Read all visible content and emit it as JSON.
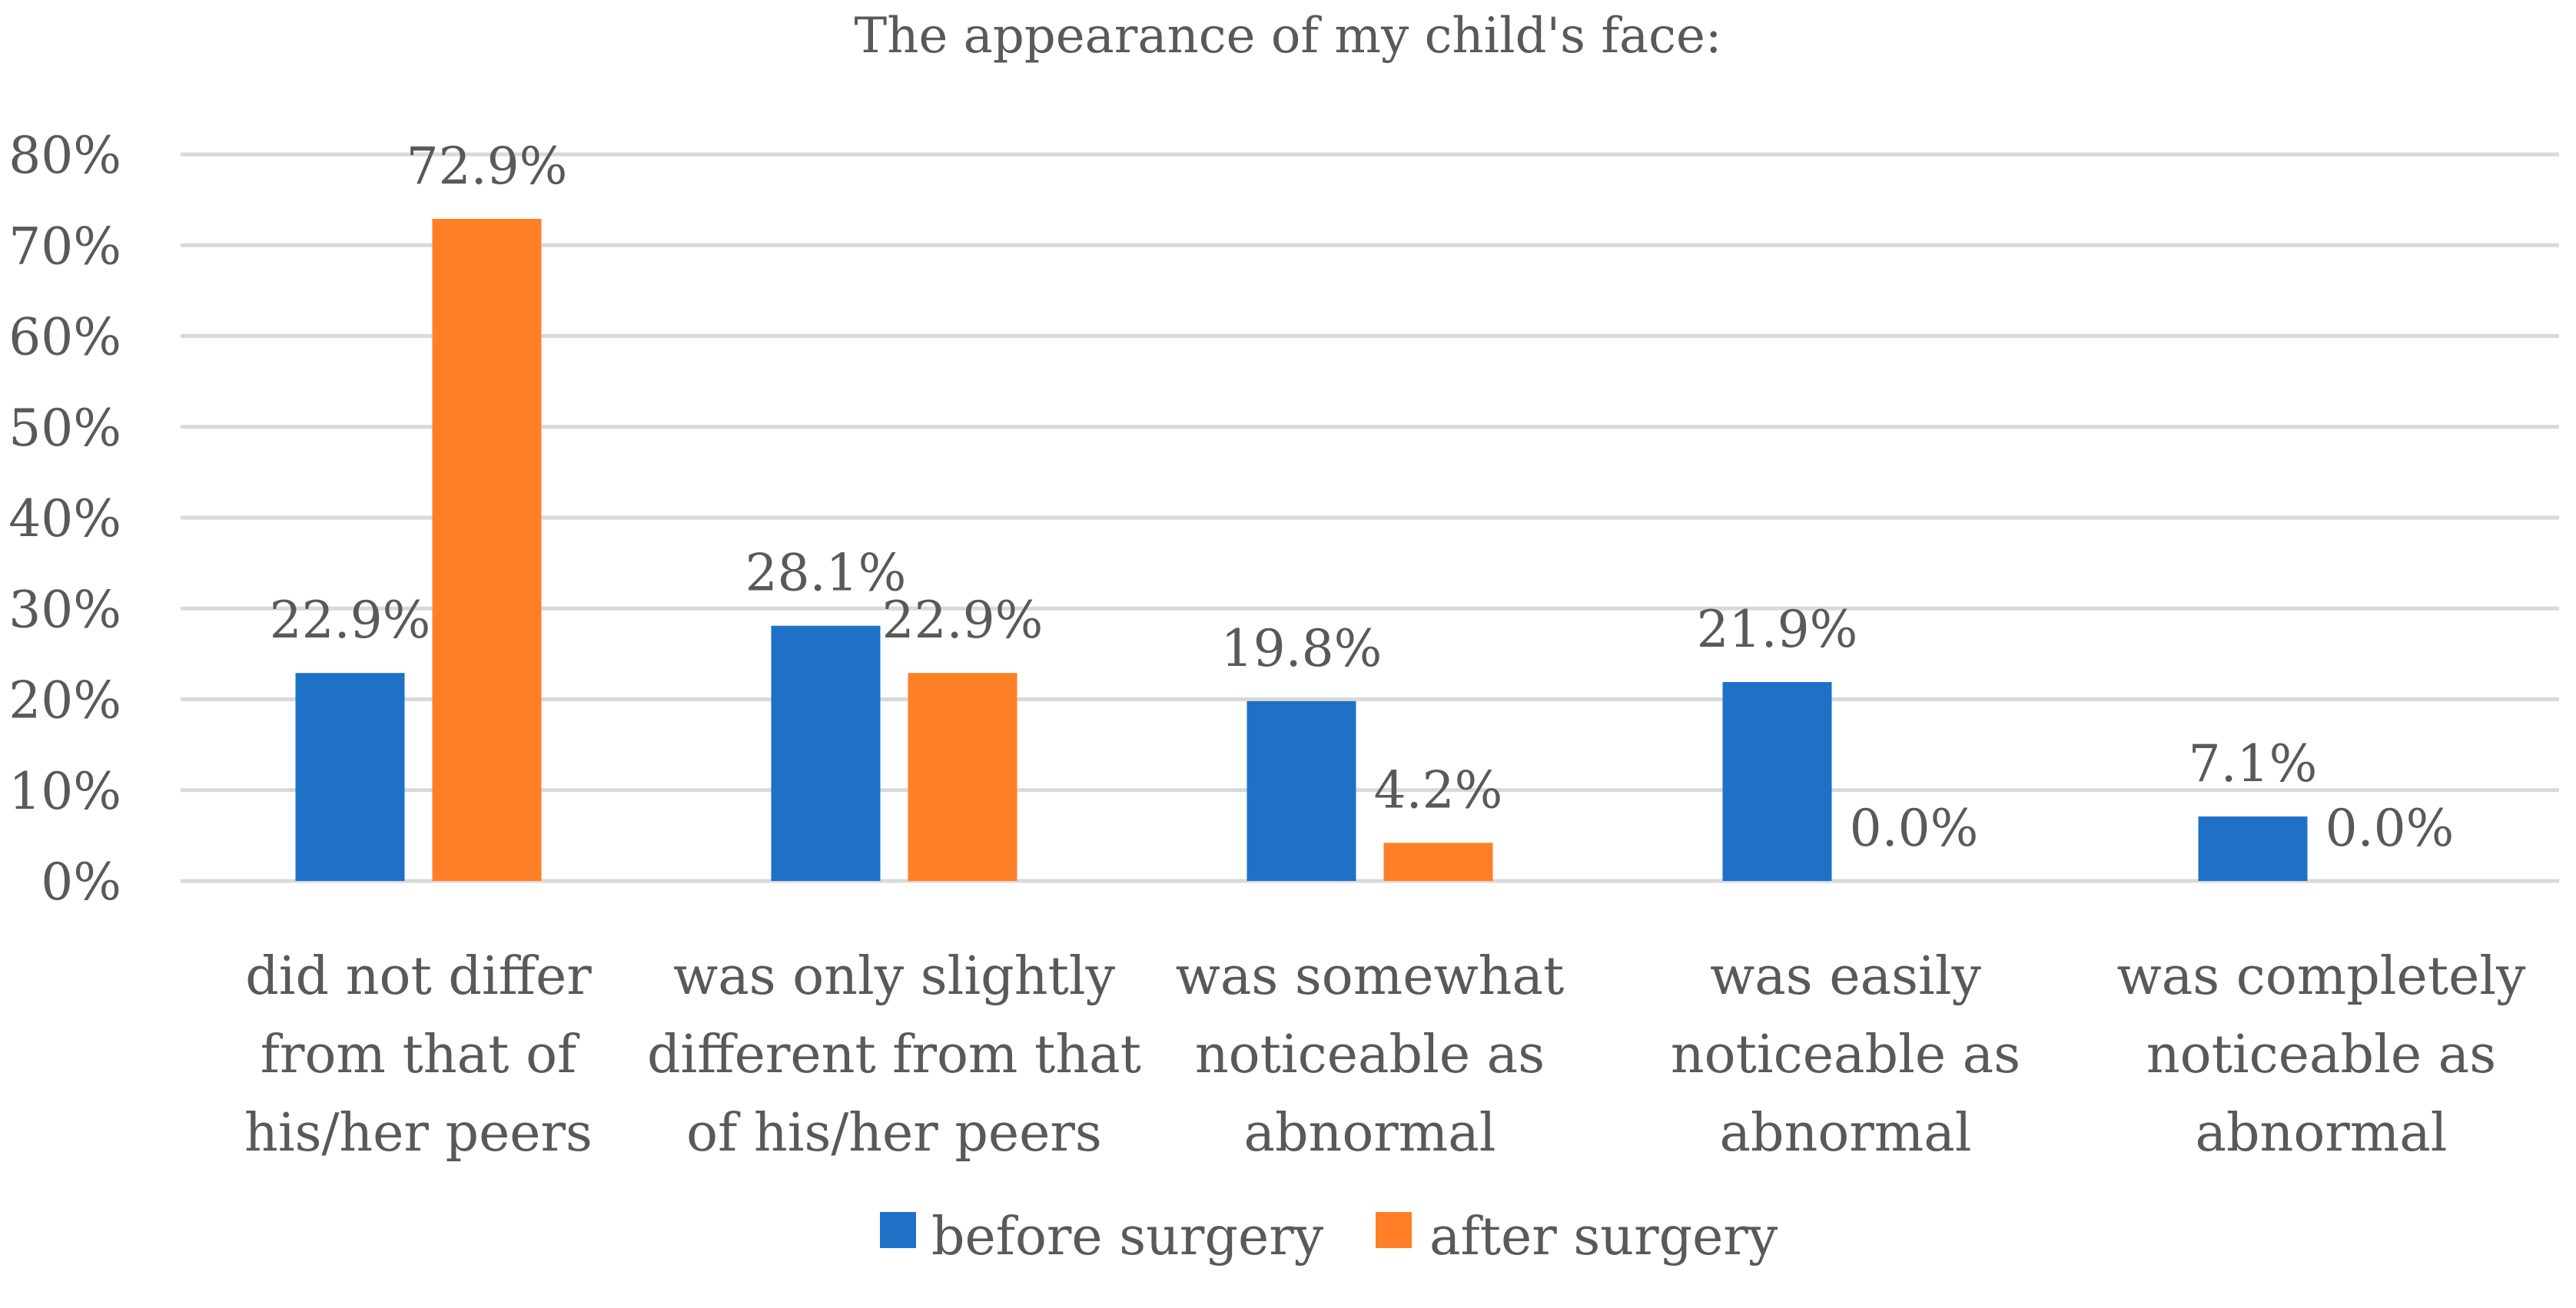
{
  "chart_data": {
    "type": "bar",
    "title": "The appearance of my child's face:",
    "categories": [
      [
        "did not differ",
        "from that of",
        "his/her peers"
      ],
      [
        "was only slightly",
        "different from that",
        "of his/her peers"
      ],
      [
        "was somewhat",
        "noticeable as",
        "abnormal"
      ],
      [
        "was easily",
        "noticeable as",
        "abnormal"
      ],
      [
        "was completely",
        "noticeable as",
        "abnormal"
      ]
    ],
    "series": [
      {
        "name": "before surgery",
        "color": "#1F71C8",
        "values": [
          22.9,
          28.1,
          19.8,
          21.9,
          7.1
        ],
        "labels": [
          "22.9%",
          "28.1%",
          "19.8%",
          "21.9%",
          "7.1%"
        ]
      },
      {
        "name": "after surgery",
        "color": "#FF7F27",
        "values": [
          72.9,
          22.9,
          4.2,
          0.0,
          0.0
        ],
        "labels": [
          "72.9%",
          "22.9%",
          "4.2%",
          "0.0%",
          "0.0%"
        ]
      }
    ],
    "yticks": [
      "0%",
      "10%",
      "20%",
      "30%",
      "40%",
      "50%",
      "60%",
      "70%",
      "80%"
    ],
    "ylim": [
      0,
      80
    ],
    "grid": true,
    "legend_position": "bottom",
    "xlabel": "",
    "ylabel": "",
    "text_color": "#595959",
    "grid_color": "#D9D9D9"
  }
}
